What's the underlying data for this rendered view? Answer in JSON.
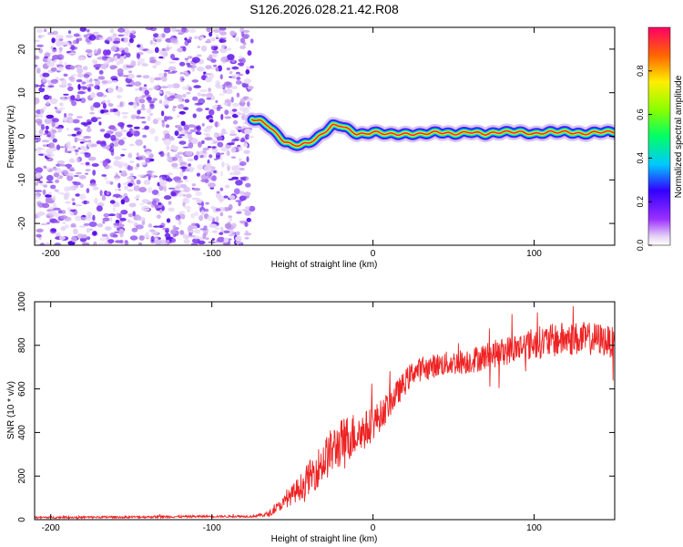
{
  "title": "S126.2026.028.21.42.R08",
  "chart_data": [
    {
      "type": "heatmap",
      "xlabel": "Height of straight line (km)",
      "ylabel": "Frequency (Hz)",
      "xlim": [
        -210,
        150
      ],
      "ylim": [
        -25,
        25
      ],
      "xticks": [
        -200,
        -100,
        0,
        100
      ],
      "yticks": [
        20,
        10,
        0,
        -10,
        -20
      ],
      "noise_region_x": [
        -210,
        -75
      ],
      "ridge": {
        "x": [
          -75,
          -70,
          -65,
          -60,
          -55,
          -50,
          -45,
          -40,
          -35,
          -30,
          -25,
          -20,
          -15,
          -10,
          -5,
          0,
          10,
          20,
          30,
          40,
          50,
          60,
          70,
          80,
          90,
          100,
          110,
          120,
          130,
          140,
          150
        ],
        "y": [
          4,
          3.5,
          2.5,
          0.5,
          -1.2,
          -2,
          -2,
          -1.5,
          -0.5,
          1,
          2.5,
          2.5,
          1.5,
          0.5,
          0.5,
          1,
          0.5,
          0.5,
          0.5,
          1,
          0.5,
          1,
          0.5,
          1,
          1,
          0.5,
          1,
          1,
          0.5,
          1,
          1
        ]
      },
      "colorbar": {
        "label": "Normalized spectral amplitude",
        "range": [
          0,
          1
        ],
        "ticks": [
          "0.0",
          "0.2",
          "0.4",
          "0.6",
          "0.8"
        ]
      }
    },
    {
      "type": "line",
      "xlabel": "Height of straight line (km)",
      "ylabel": "SNR (10 * v/v)",
      "xlim": [
        -210,
        150
      ],
      "ylim": [
        0,
        1000
      ],
      "xticks": [
        -200,
        -100,
        0,
        100
      ],
      "yticks": [
        1000,
        800,
        600,
        400,
        200,
        0
      ],
      "series": [
        {
          "name": "SNR",
          "color": "#ee2222",
          "x": [
            -210,
            -150,
            -100,
            -75,
            -65,
            -55,
            -45,
            -35,
            -25,
            -15,
            -5,
            5,
            15,
            25,
            40,
            60,
            80,
            100,
            120,
            140,
            150
          ],
          "mean": [
            10,
            12,
            15,
            15,
            25,
            80,
            150,
            230,
            320,
            380,
            410,
            480,
            580,
            680,
            710,
            730,
            770,
            810,
            830,
            830,
            810
          ],
          "spread": [
            5,
            5,
            5,
            5,
            12,
            30,
            60,
            90,
            110,
            110,
            90,
            70,
            60,
            55,
            55,
            60,
            65,
            75,
            80,
            75,
            70
          ]
        }
      ]
    }
  ]
}
